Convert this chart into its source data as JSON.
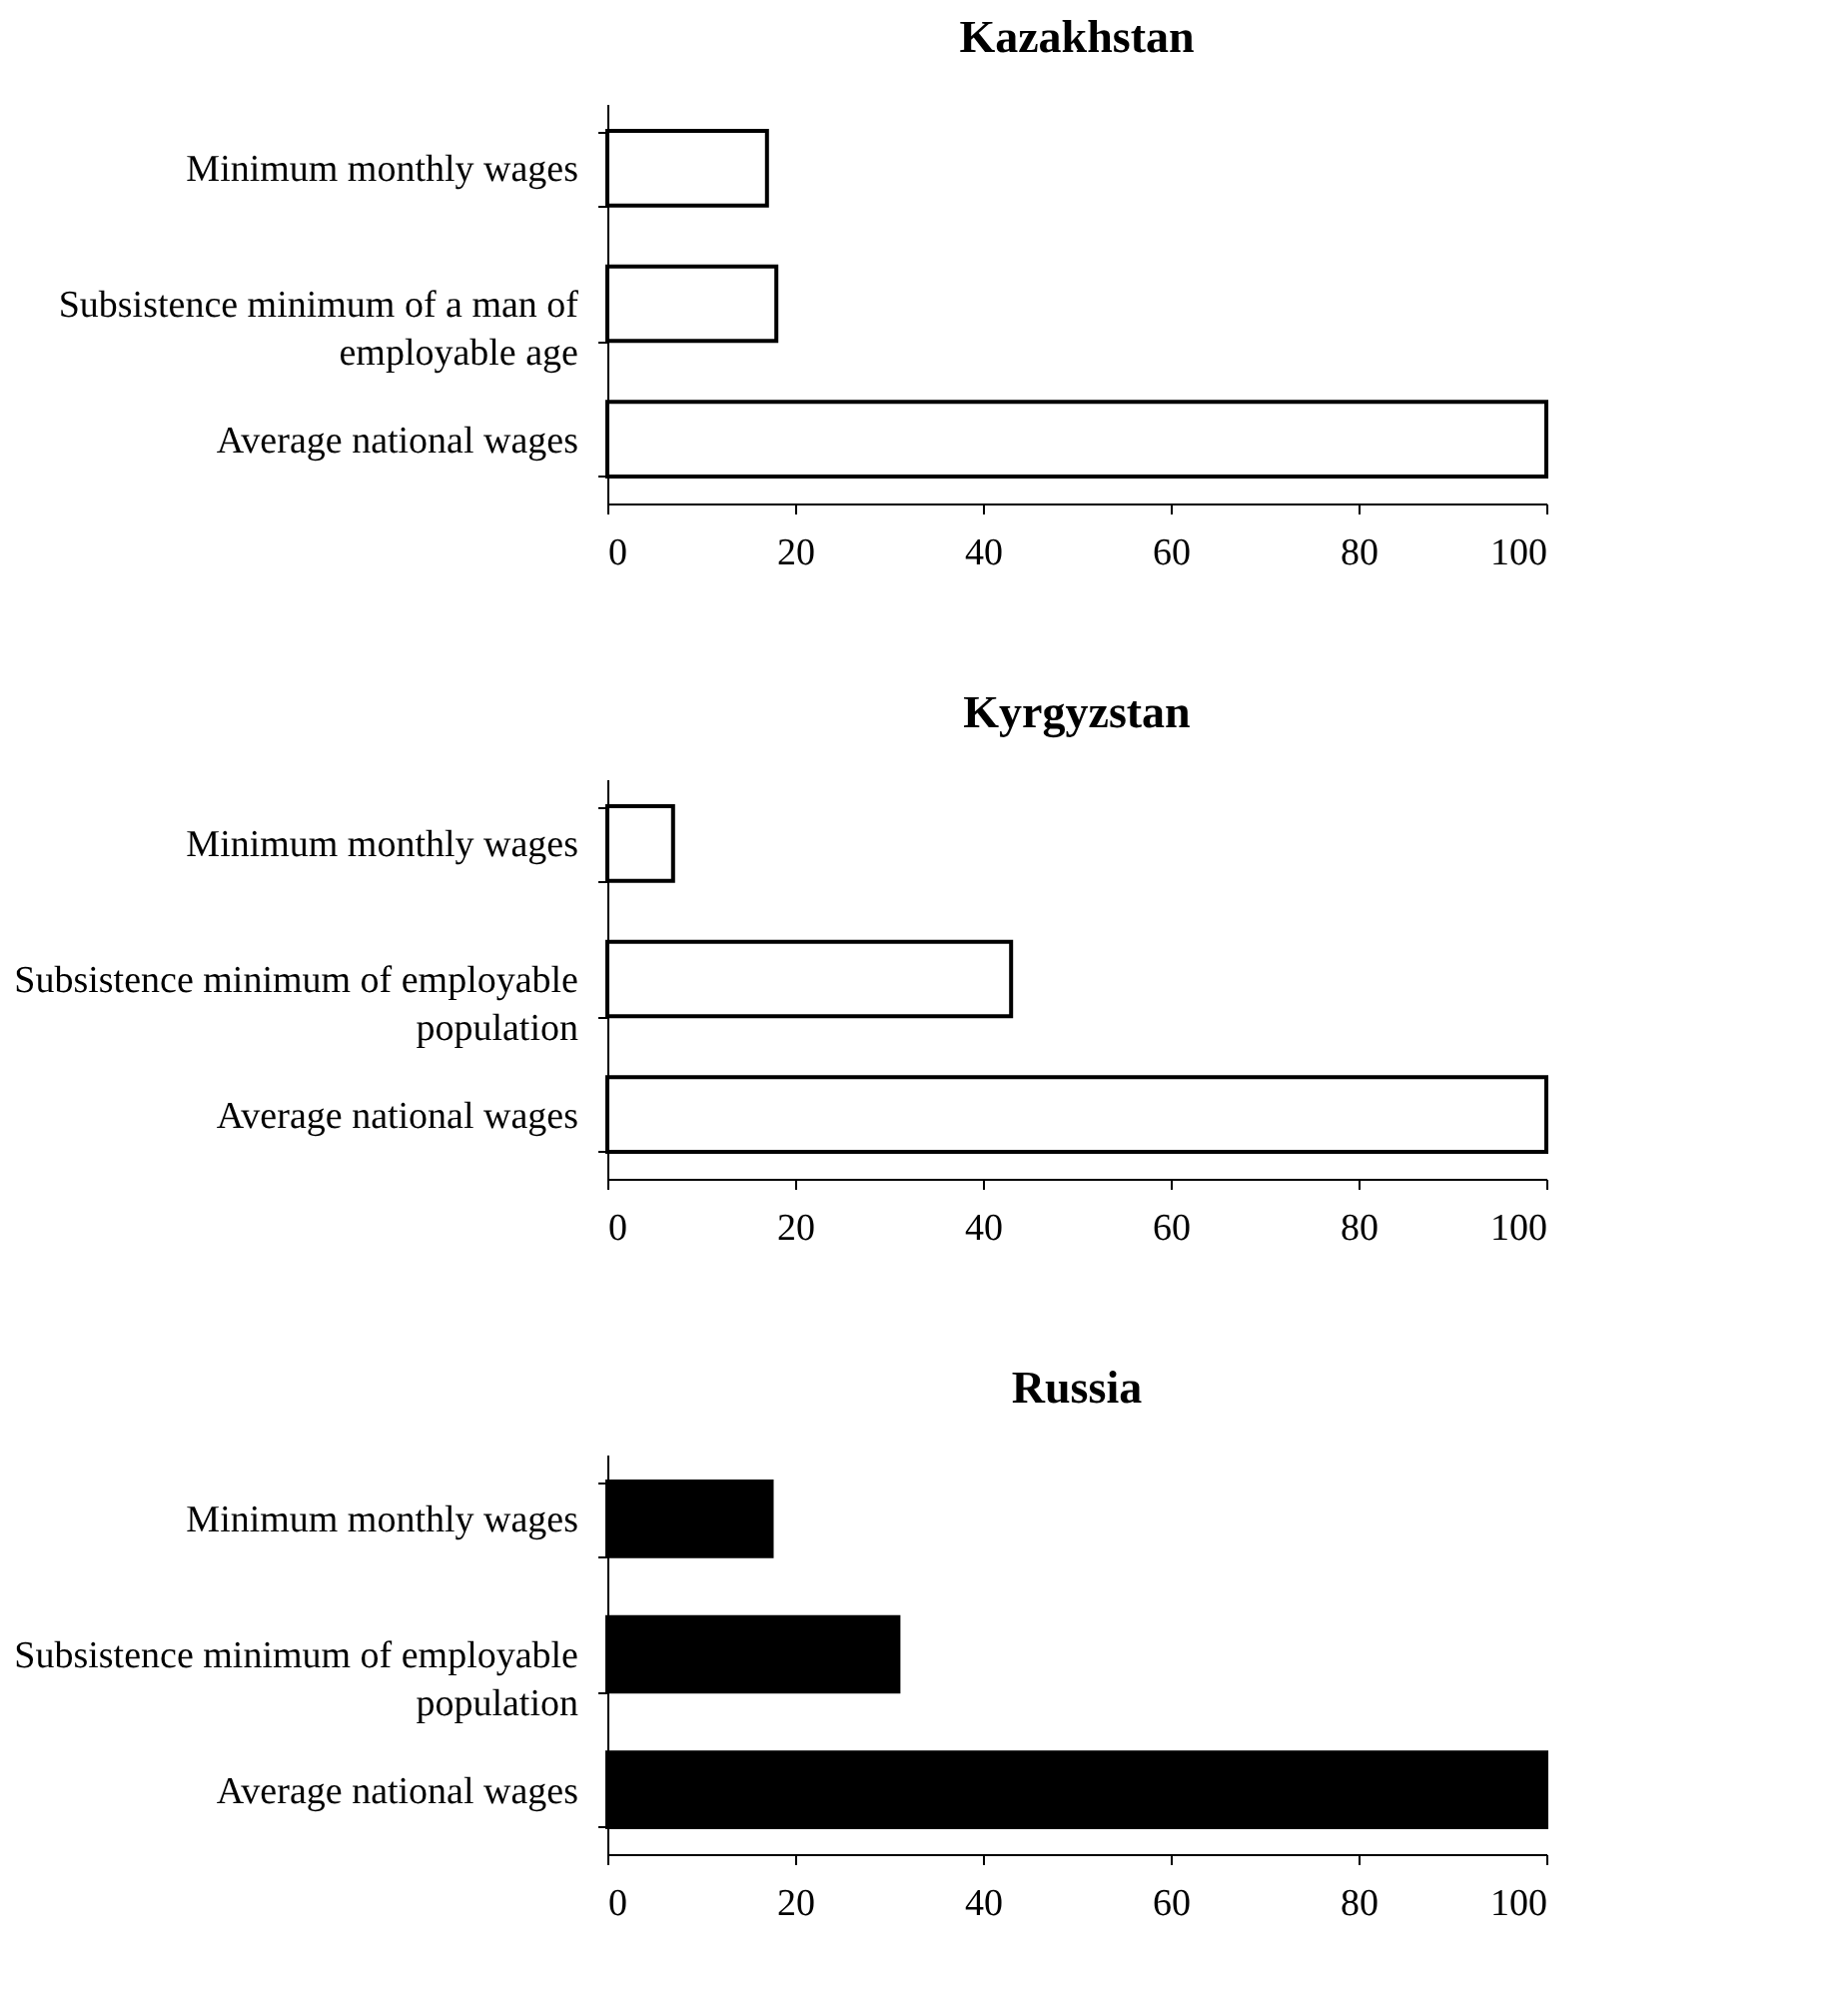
{
  "chart_data": [
    {
      "type": "bar",
      "orientation": "horizontal",
      "title": "Kazakhstan",
      "categories": [
        "Minimum monthly wages",
        "Subsistence minimum of a man of employable age",
        "Average national wages"
      ],
      "values": [
        17,
        18,
        100
      ],
      "color": "#ffffff",
      "xlim": [
        0,
        100
      ],
      "xticks": [
        0,
        20,
        40,
        60,
        80,
        100
      ]
    },
    {
      "type": "bar",
      "orientation": "horizontal",
      "title": "Kyrgyzstan",
      "categories": [
        "Minimum monthly wages",
        "Subsistence minimum of employable population",
        "Average national wages"
      ],
      "values": [
        7,
        43,
        100
      ],
      "color": "#ffffff",
      "xlim": [
        0,
        100
      ],
      "xticks": [
        0,
        20,
        40,
        60,
        80,
        100
      ]
    },
    {
      "type": "bar",
      "orientation": "horizontal",
      "title": "Russia",
      "categories": [
        "Minimum monthly wages",
        "Subsistence minimum of employable population",
        "Average national wages"
      ],
      "values": [
        17.5,
        31,
        100
      ],
      "color": "#000000",
      "xlim": [
        0,
        100
      ],
      "xticks": [
        0,
        20,
        40,
        60,
        80,
        100
      ]
    }
  ]
}
